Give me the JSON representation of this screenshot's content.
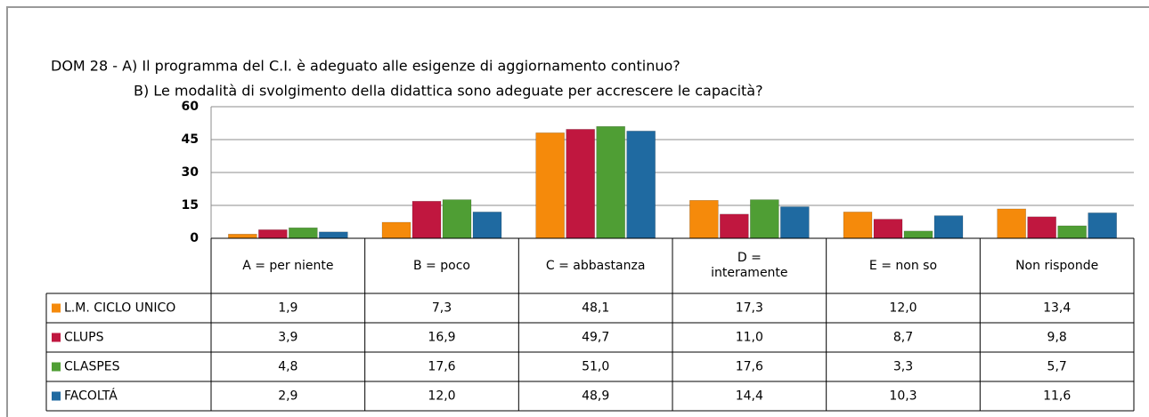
{
  "chart_data": {
    "type": "bar",
    "title": "DOM 28 - A) Il programma del C.I. è adeguato alle esigenze di aggiornamento continuo?",
    "subtitle": "B) Le modalità di svolgimento della didattica sono adeguate per accrescere le capacità?",
    "categories": [
      "A = per niente",
      "B = poco",
      "C = abbastanza",
      "D =\ninteramente",
      "E = non so",
      "Non risponde"
    ],
    "series": [
      {
        "name": "L.M. CICLO UNICO",
        "color": "#f58a0b",
        "values": [
          1.9,
          7.3,
          48.1,
          17.3,
          12.0,
          13.4
        ],
        "value_labels": [
          "1,9",
          "7,3",
          "48,1",
          "17,3",
          "12,0",
          "13,4"
        ]
      },
      {
        "name": "CLUPS",
        "color": "#c0173f",
        "values": [
          3.9,
          16.9,
          49.7,
          11.0,
          8.7,
          9.8
        ],
        "value_labels": [
          "3,9",
          "16,9",
          "49,7",
          "11,0",
          "8,7",
          "9,8"
        ]
      },
      {
        "name": "CLASPES",
        "color": "#4f9e34",
        "values": [
          4.8,
          17.6,
          51.0,
          17.6,
          3.3,
          5.7
        ],
        "value_labels": [
          "4,8",
          "17,6",
          "51,0",
          "17,6",
          "3,3",
          "5,7"
        ]
      },
      {
        "name": "FACOLTÁ",
        "color": "#1f6aa1",
        "values": [
          2.9,
          12.0,
          48.9,
          14.4,
          10.3,
          11.6
        ],
        "value_labels": [
          "2,9",
          "12,0",
          "48,9",
          "14,4",
          "10,3",
          "11,6"
        ]
      }
    ],
    "ylim": [
      0,
      60
    ],
    "yticks": [
      0,
      15,
      30,
      45,
      60
    ],
    "grid": true
  }
}
